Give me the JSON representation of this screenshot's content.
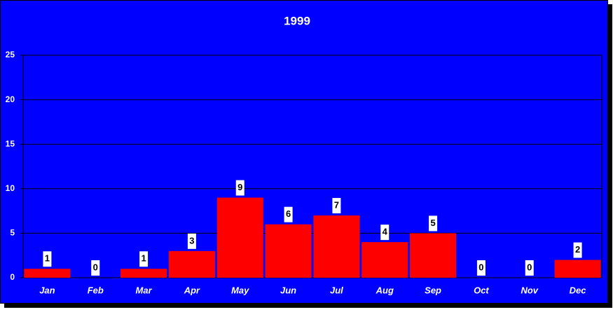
{
  "chart_data": {
    "type": "bar",
    "title": "1999",
    "categories": [
      "Jan",
      "Feb",
      "Mar",
      "Apr",
      "May",
      "Jun",
      "Jul",
      "Aug",
      "Sep",
      "Oct",
      "Nov",
      "Dec"
    ],
    "values": [
      1,
      0,
      1,
      3,
      9,
      6,
      7,
      4,
      5,
      0,
      0,
      2
    ],
    "color": "#ff0000",
    "background": "#0000ff",
    "ylim": [
      0,
      25
    ],
    "yticks": [
      0,
      5,
      10,
      15,
      20,
      25
    ],
    "grid": true
  }
}
